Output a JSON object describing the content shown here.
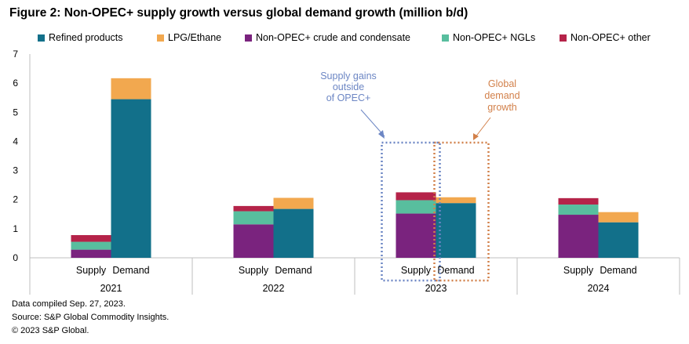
{
  "title": "Figure 2: Non-OPEC+ supply growth versus global demand growth (million b/d)",
  "footnotes": [
    "Data compiled Sep. 27, 2023.",
    "Source: S&P Global Commodity Insights.",
    "© 2023 S&P Global."
  ],
  "chart_data": {
    "type": "bar",
    "stacked": true,
    "title": "Figure 2: Non-OPEC+ supply growth versus global demand growth (million b/d)",
    "xlabel": "",
    "ylabel": "",
    "ylim": [
      0,
      7
    ],
    "yticks": [
      0,
      1,
      2,
      3,
      4,
      5,
      6,
      7
    ],
    "grid": false,
    "legend_position": "top",
    "groups": [
      "2021",
      "2022",
      "2023",
      "2024"
    ],
    "categories": [
      "Supply",
      "Demand"
    ],
    "series": [
      {
        "name": "Refined products",
        "color": "#12708A",
        "values": [
          [
            0,
            5.45
          ],
          [
            0,
            1.68
          ],
          [
            0,
            1.88
          ],
          [
            0,
            1.22
          ]
        ]
      },
      {
        "name": "LPG/Ethane",
        "color": "#F2A84F",
        "values": [
          [
            0,
            0.72
          ],
          [
            0,
            0.38
          ],
          [
            0,
            0.2
          ],
          [
            0,
            0.35
          ]
        ]
      },
      {
        "name": "Non-OPEC+ crude and condensate",
        "color": "#7A237E",
        "values": [
          [
            0.28,
            0
          ],
          [
            1.15,
            0
          ],
          [
            1.52,
            0
          ],
          [
            1.48,
            0
          ]
        ]
      },
      {
        "name": "Non-OPEC+ NGLs",
        "color": "#58BE9E",
        "values": [
          [
            0.27,
            0
          ],
          [
            0.45,
            0
          ],
          [
            0.46,
            0
          ],
          [
            0.35,
            0
          ]
        ]
      },
      {
        "name": "Non-OPEC+ other",
        "color": "#B52349",
        "values": [
          [
            0.23,
            0
          ],
          [
            0.18,
            0
          ],
          [
            0.27,
            0
          ],
          [
            0.22,
            0
          ]
        ]
      }
    ],
    "annotations": [
      {
        "text": [
          "Supply gains",
          "outside",
          "of OPEC+"
        ],
        "color": "#6C86C4"
      },
      {
        "text": [
          "Global",
          "demand",
          "growth"
        ],
        "color": "#D2804A"
      }
    ]
  }
}
